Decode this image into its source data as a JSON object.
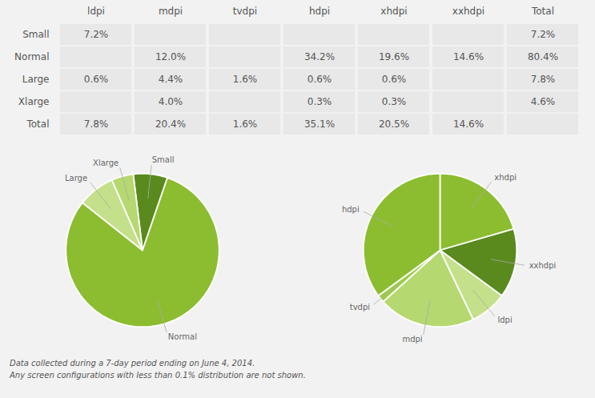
{
  "chart_data": [
    {
      "type": "table",
      "categories": [
        "ldpi",
        "mdpi",
        "tvdpi",
        "hdpi",
        "xhdpi",
        "xxhdpi",
        "Total"
      ],
      "series": [
        {
          "name": "Small",
          "values": [
            7.2,
            null,
            null,
            null,
            null,
            null,
            7.2
          ],
          "value_labels": [
            "7.2%",
            null,
            null,
            null,
            null,
            null,
            "7.2%"
          ]
        },
        {
          "name": "Normal",
          "values": [
            null,
            12.0,
            null,
            34.2,
            19.6,
            14.6,
            80.4
          ],
          "value_labels": [
            null,
            "12.0%",
            null,
            "34.2%",
            "19.6%",
            "14.6%",
            "80.4%"
          ]
        },
        {
          "name": "Large",
          "values": [
            0.6,
            4.4,
            1.6,
            0.6,
            0.6,
            null,
            7.8
          ],
          "value_labels": [
            "0.6%",
            "4.4%",
            "1.6%",
            "0.6%",
            "0.6%",
            null,
            "7.8%"
          ]
        },
        {
          "name": "Xlarge",
          "values": [
            null,
            4.0,
            null,
            0.3,
            0.3,
            null,
            4.6
          ],
          "value_labels": [
            null,
            "4.0%",
            null,
            "0.3%",
            "0.3%",
            null,
            "4.6%"
          ]
        },
        {
          "name": "Total",
          "values": [
            7.8,
            20.4,
            1.6,
            35.1,
            20.5,
            14.6,
            null
          ],
          "value_labels": [
            "7.8%",
            "20.4%",
            "1.6%",
            "35.1%",
            "20.5%",
            "14.6%",
            null
          ]
        }
      ]
    },
    {
      "type": "pie",
      "categories": [
        "Small",
        "Normal",
        "Large",
        "Xlarge"
      ],
      "values": [
        7.2,
        80.4,
        7.8,
        4.6
      ],
      "colors": [
        "#5a8a1e",
        "#8cbd30",
        "#c5e08a",
        "#b5d870"
      ]
    },
    {
      "type": "pie",
      "categories": [
        "xhdpi",
        "xxhdpi",
        "ldpi",
        "mdpi",
        "tvdpi",
        "hdpi"
      ],
      "values": [
        20.5,
        14.6,
        7.8,
        20.4,
        1.6,
        35.1
      ],
      "colors": [
        "#8cbd30",
        "#5a8a1e",
        "#c5e08a",
        "#b5d870",
        "#9ccc48",
        "#8cbd30"
      ],
      "annotations": [
        "Data collected during a 7-day period ending on June 4, 2014.",
        "Any screen configurations with less than 0.1% distribution are not shown."
      ]
    }
  ]
}
